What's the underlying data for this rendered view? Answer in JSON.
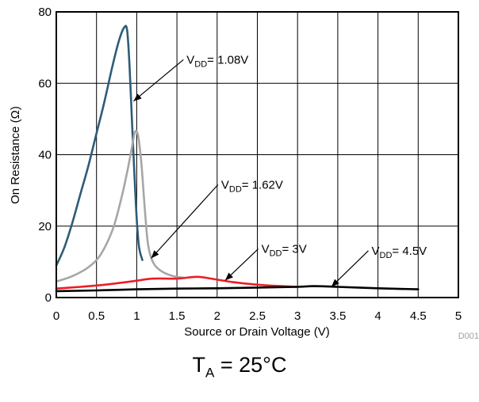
{
  "chart_data": {
    "type": "line",
    "xlabel": "Source or Drain Voltage (V)",
    "ylabel": "On Resistance (Ω)",
    "xlim": [
      0,
      5
    ],
    "ylim": [
      0,
      80
    ],
    "x_ticks": [
      "0",
      "0.5",
      "1",
      "1.5",
      "2",
      "2.5",
      "3",
      "3.5",
      "4",
      "4.5",
      "5"
    ],
    "y_ticks": [
      "0",
      "20",
      "40",
      "60",
      "80"
    ],
    "grid": true,
    "watermark": "D001",
    "series": [
      {
        "name": "VDD= 1.08V",
        "label_main": "V",
        "label_sub": "DD",
        "label_rest": "= 1.08V",
        "color": "#2e5c78",
        "x": [
          0,
          0.1,
          0.2,
          0.3,
          0.4,
          0.5,
          0.6,
          0.7,
          0.78,
          0.84,
          0.88,
          0.91,
          0.94,
          0.97,
          1.0,
          1.03,
          1.07
        ],
        "y": [
          9,
          14,
          21,
          29,
          37,
          46,
          55,
          65,
          72,
          75.5,
          75,
          65,
          50,
          35,
          22,
          14,
          10.5
        ]
      },
      {
        "name": "VDD= 1.62V",
        "label_main": "V",
        "label_sub": "DD",
        "label_rest": "= 1.62V",
        "color": "#a6a6a6",
        "x": [
          0,
          0.2,
          0.4,
          0.55,
          0.7,
          0.8,
          0.88,
          0.94,
          0.98,
          1.02,
          1.06,
          1.1,
          1.14,
          1.2,
          1.3,
          1.45,
          1.6
        ],
        "y": [
          4.5,
          6,
          8.5,
          12,
          19,
          27,
          35,
          42,
          46.5,
          45,
          37,
          25,
          15,
          10,
          7.5,
          6,
          5.5
        ]
      },
      {
        "name": "VDD= 3V",
        "label_main": "V",
        "label_sub": "DD",
        "label_rest": "= 3V",
        "color": "#ee1c25",
        "x": [
          0,
          0.3,
          0.6,
          0.9,
          1.2,
          1.5,
          1.75,
          1.95,
          2.2,
          2.5,
          2.8,
          3.0
        ],
        "y": [
          2.5,
          3,
          3.6,
          4.4,
          5.3,
          5.3,
          5.8,
          5.2,
          4.3,
          3.6,
          3.2,
          3.0
        ]
      },
      {
        "name": "VDD= 4.5V",
        "label_main": "V",
        "label_sub": "DD",
        "label_rest": "= 4.5V",
        "color": "#000000",
        "x": [
          0,
          0.5,
          1.0,
          1.5,
          2.0,
          2.5,
          3.0,
          3.2,
          3.5,
          4.0,
          4.5
        ],
        "y": [
          1.8,
          2.0,
          2.3,
          2.5,
          2.6,
          2.8,
          3.0,
          3.2,
          3.0,
          2.6,
          2.3
        ]
      }
    ],
    "annotations": [
      {
        "series": 0,
        "label_x": 1.62,
        "label_y": 65.5,
        "arrow_x": 0.96,
        "arrow_y": 55
      },
      {
        "series": 1,
        "label_x": 2.05,
        "label_y": 30.5,
        "arrow_x": 1.18,
        "arrow_y": 11
      },
      {
        "series": 2,
        "label_x": 2.55,
        "label_y": 12.5,
        "arrow_x": 2.1,
        "arrow_y": 4.8
      },
      {
        "series": 3,
        "label_x": 3.92,
        "label_y": 12,
        "arrow_x": 3.42,
        "arrow_y": 3.0
      }
    ]
  },
  "caption": {
    "main": "T",
    "sub": "A",
    "rest": " = 25°C"
  }
}
